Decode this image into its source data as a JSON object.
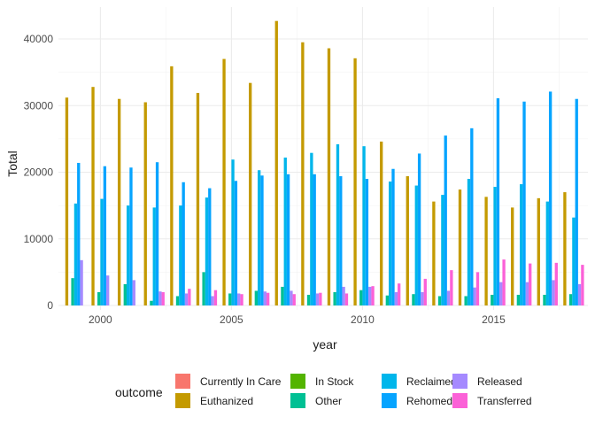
{
  "chart_data": {
    "type": "bar",
    "xlabel": "year",
    "ylabel": "Total",
    "ylim": [
      0,
      43500
    ],
    "xlim": [
      1998.4,
      2018.6
    ],
    "x_ticks": [
      2000,
      2005,
      2010,
      2015
    ],
    "x_tick_labels": [
      "2000",
      "2005",
      "2010",
      "2015"
    ],
    "y_ticks": [
      0,
      10000,
      20000,
      30000,
      40000
    ],
    "y_tick_labels": [
      "0",
      "10000",
      "20000",
      "30000",
      "40000"
    ],
    "grid": true,
    "legend_title": "outcome",
    "legend_position": "bottom",
    "categories": [
      1999,
      2000,
      2001,
      2002,
      2003,
      2004,
      2005,
      2006,
      2007,
      2008,
      2009,
      2010,
      2011,
      2012,
      2013,
      2014,
      2015,
      2016,
      2017,
      2018
    ],
    "series": [
      {
        "name": "Currently In Care",
        "color": "#F8766D",
        "values": [
          0,
          0,
          0,
          0,
          0,
          0,
          0,
          0,
          0,
          0,
          0,
          0,
          0,
          0,
          0,
          0,
          0,
          0,
          0,
          0
        ]
      },
      {
        "name": "Euthanized",
        "color": "#C49A00",
        "values": [
          31200,
          32800,
          31000,
          30500,
          35900,
          31900,
          37000,
          33400,
          42700,
          39500,
          38600,
          37100,
          24600,
          19400,
          15600,
          17400,
          16300,
          14700,
          16100,
          17000
        ]
      },
      {
        "name": "In Stock",
        "color": "#53B400",
        "values": [
          0,
          0,
          0,
          0,
          0,
          0,
          0,
          0,
          0,
          0,
          0,
          0,
          0,
          0,
          0,
          0,
          0,
          0,
          0,
          0
        ]
      },
      {
        "name": "Other",
        "color": "#00C094",
        "values": [
          4100,
          2000,
          3200,
          700,
          1400,
          5000,
          1800,
          2200,
          2800,
          1600,
          2000,
          2300,
          1500,
          1700,
          1400,
          1400,
          1600,
          1600,
          1600,
          1700
        ]
      },
      {
        "name": "Reclaimed",
        "color": "#00B6EB",
        "values": [
          15300,
          16000,
          15000,
          14700,
          15000,
          16200,
          21900,
          20300,
          22200,
          22900,
          24200,
          23900,
          18600,
          18000,
          16600,
          19000,
          17800,
          18200,
          15600,
          13200
        ]
      },
      {
        "name": "Rehomed",
        "color": "#06A4FF",
        "values": [
          21400,
          20900,
          20700,
          21500,
          18500,
          17600,
          18700,
          19500,
          19700,
          19700,
          19400,
          19000,
          20500,
          22800,
          25500,
          26600,
          31100,
          30600,
          32100,
          31000
        ]
      },
      {
        "name": "Released",
        "color": "#A58AFF",
        "values": [
          6800,
          4500,
          3800,
          2100,
          1800,
          1400,
          1800,
          2100,
          2200,
          1800,
          2800,
          2800,
          2000,
          2000,
          2200,
          2700,
          3500,
          3500,
          3800,
          3200
        ]
      },
      {
        "name": "Transferred",
        "color": "#FB61D7",
        "values": [
          0,
          0,
          0,
          2000,
          2500,
          2300,
          1700,
          1900,
          1700,
          1900,
          1800,
          2900,
          3300,
          4000,
          5300,
          5000,
          6900,
          6300,
          6400,
          6100
        ]
      }
    ]
  }
}
